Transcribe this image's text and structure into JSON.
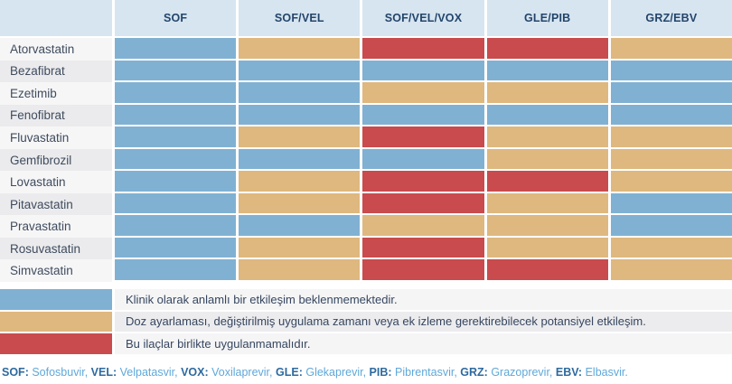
{
  "colors": {
    "header_bg": "#d7e5f1",
    "header_text": "#23456a",
    "level_none": "#80b1d3",
    "level_potential": "#deb87f",
    "level_contraindicated": "#c94b4d",
    "row_label_light": "#f6f6f7",
    "row_label_dark": "#ebebed"
  },
  "chart_data": {
    "type": "heatmap",
    "columns": [
      "SOF",
      "SOF/VEL",
      "SOF/VEL/VOX",
      "GLE/PIB",
      "GRZ/EBV"
    ],
    "rows": [
      "Atorvastatin",
      "Bezafibrat",
      "Ezetimib",
      "Fenofibrat",
      "Fluvastatin",
      "Gemfibrozil",
      "Lovastatin",
      "Pitavastatin",
      "Pravastatin",
      "Rosuvastatin",
      "Simvastatin"
    ],
    "values": [
      [
        "none",
        "potential",
        "contraindicated",
        "contraindicated",
        "potential"
      ],
      [
        "none",
        "none",
        "none",
        "none",
        "none"
      ],
      [
        "none",
        "none",
        "potential",
        "potential",
        "none"
      ],
      [
        "none",
        "none",
        "none",
        "none",
        "none"
      ],
      [
        "none",
        "potential",
        "contraindicated",
        "potential",
        "potential"
      ],
      [
        "none",
        "none",
        "none",
        "potential",
        "potential"
      ],
      [
        "none",
        "potential",
        "contraindicated",
        "contraindicated",
        "potential"
      ],
      [
        "none",
        "potential",
        "contraindicated",
        "potential",
        "none"
      ],
      [
        "none",
        "none",
        "potential",
        "potential",
        "none"
      ],
      [
        "none",
        "potential",
        "contraindicated",
        "potential",
        "potential"
      ],
      [
        "none",
        "potential",
        "contraindicated",
        "contraindicated",
        "potential"
      ]
    ],
    "legend": [
      {
        "level": "none",
        "color": "#80b1d3",
        "label": "Klinik olarak anlamlı bir etkileşim beklenmemektedir."
      },
      {
        "level": "potential",
        "color": "#deb87f",
        "label": "Doz ayarlaması, değiştirilmiş uygulama zamanı veya ek izleme gerektirebilecek potansiyel etkileşim."
      },
      {
        "level": "contraindicated",
        "color": "#c94b4d",
        "label": "Bu ilaçlar birlikte uygulanmamalıdır."
      }
    ],
    "legend_position": "bottom"
  },
  "footnote": {
    "items": [
      {
        "abbr": "SOF:",
        "name": "Sofosbuvir,"
      },
      {
        "abbr": "VEL:",
        "name": "Velpatasvir,"
      },
      {
        "abbr": "VOX:",
        "name": "Voxilaprevir,"
      },
      {
        "abbr": "GLE:",
        "name": "Glekaprevir,"
      },
      {
        "abbr": "PIB:",
        "name": "Pibrentasvir,"
      },
      {
        "abbr": "GRZ:",
        "name": "Grazoprevir,"
      },
      {
        "abbr": "EBV:",
        "name": "Elbasvir."
      }
    ]
  }
}
